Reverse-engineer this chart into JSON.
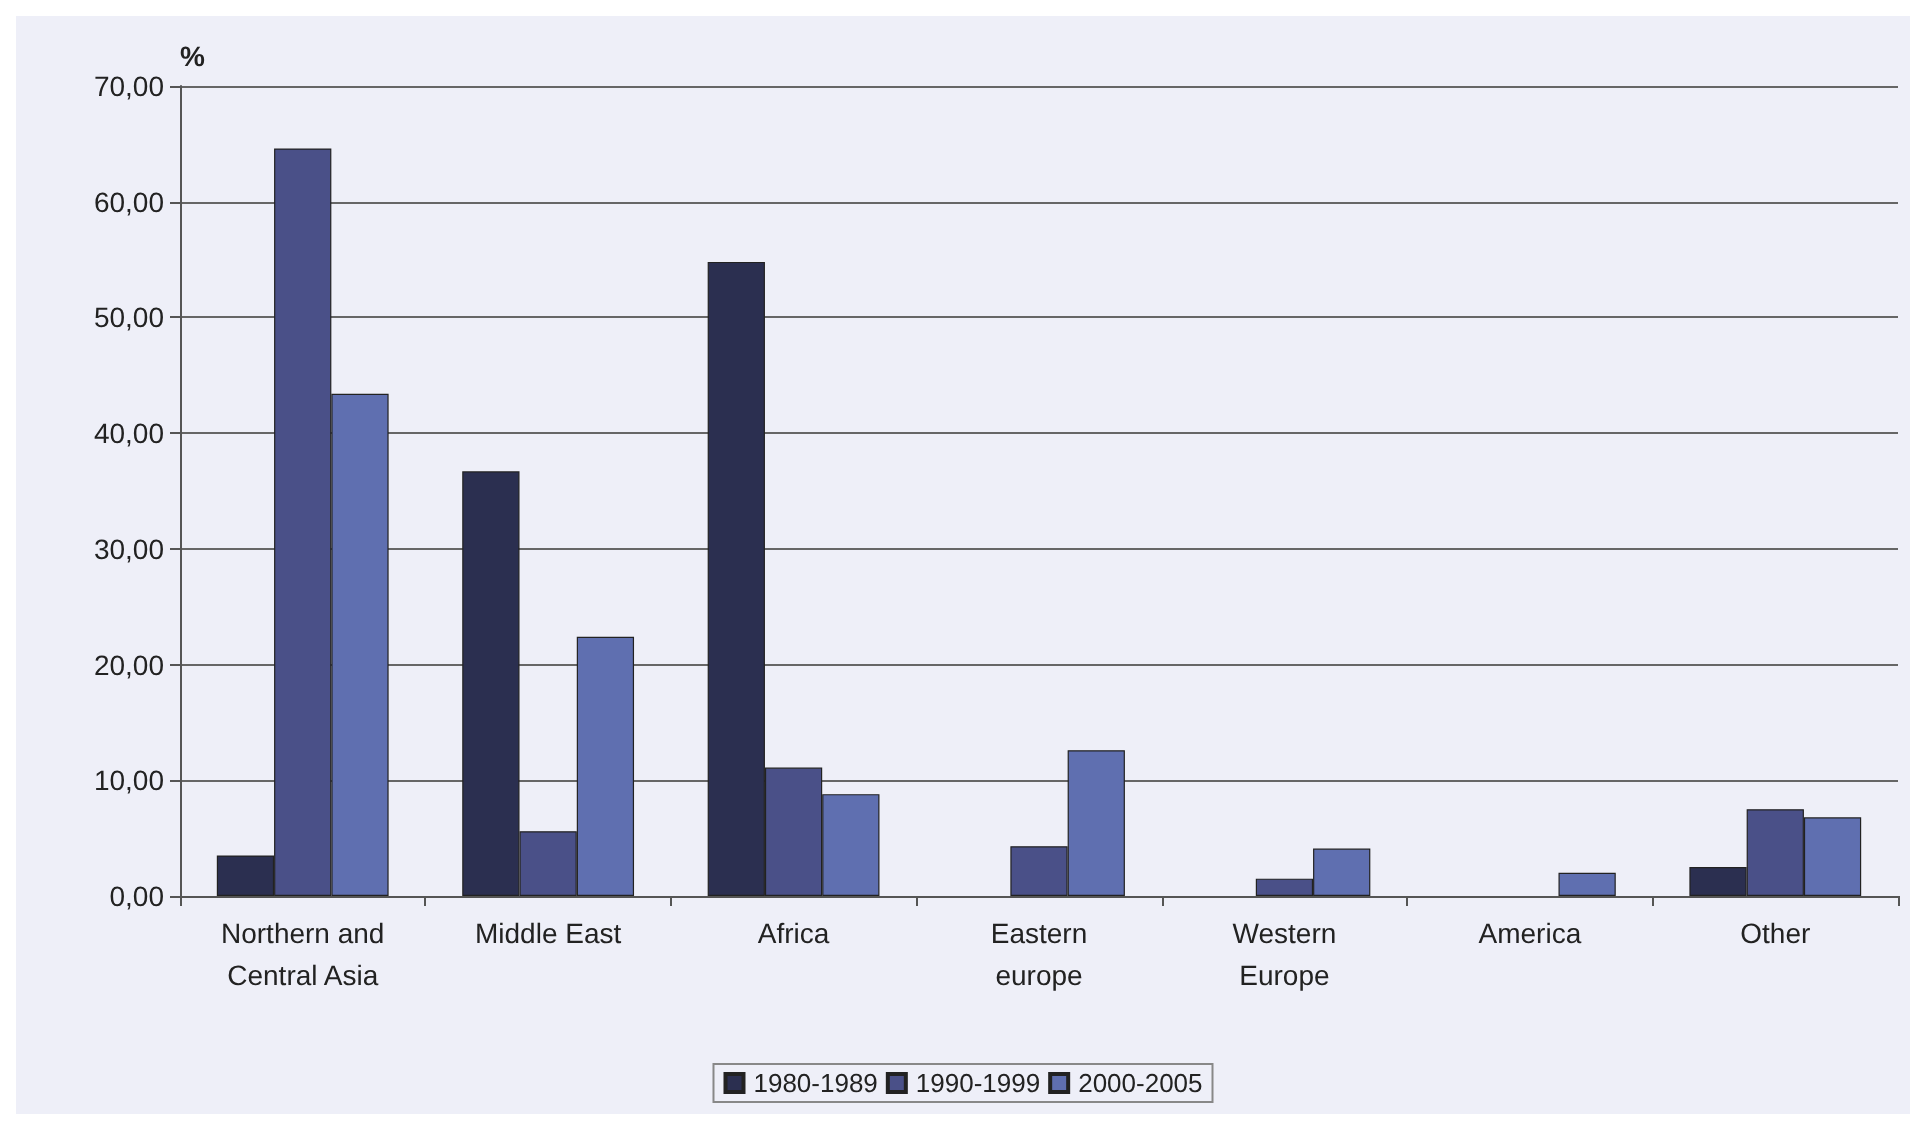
{
  "chart_data": {
    "type": "bar",
    "ylabel": "%",
    "categories": [
      "Northern and\nCentral Asia",
      "Middle East",
      "Africa",
      "Eastern\neurope",
      "Western\nEurope",
      "America",
      "Other"
    ],
    "series": [
      {
        "name": "1980-1989",
        "color": "#2b2f50",
        "values": [
          3.5,
          36.7,
          54.8,
          null,
          null,
          null,
          2.5
        ]
      },
      {
        "name": "1990-1999",
        "color": "#4a5088",
        "values": [
          64.6,
          5.6,
          11.1,
          4.3,
          1.5,
          null,
          7.5
        ]
      },
      {
        "name": "2000-2005",
        "color": "#5f6fb0",
        "values": [
          43.4,
          22.4,
          8.8,
          12.6,
          4.1,
          2.0,
          6.8
        ]
      }
    ],
    "ylim": [
      0,
      70
    ],
    "yticks": [
      {
        "value": 0,
        "label": "0,00"
      },
      {
        "value": 10,
        "label": "10,00"
      },
      {
        "value": 20,
        "label": "20,00"
      },
      {
        "value": 30,
        "label": "30,00"
      },
      {
        "value": 40,
        "label": "40,00"
      },
      {
        "value": 50,
        "label": "50,00"
      },
      {
        "value": 60,
        "label": "60,00"
      },
      {
        "value": 70,
        "label": "70,00"
      }
    ],
    "grid": "y",
    "legend": "bottom"
  }
}
